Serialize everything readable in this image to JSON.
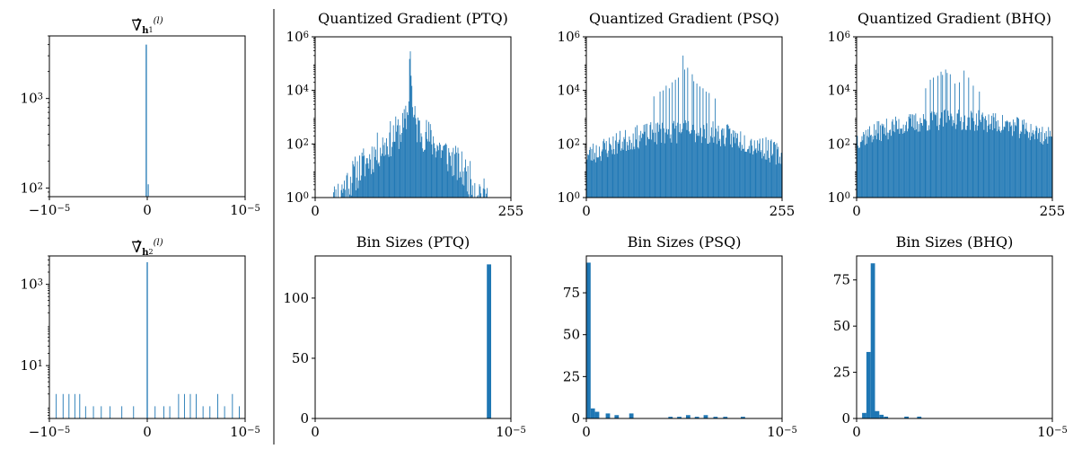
{
  "colors": {
    "bar": "#1f77b4",
    "axis": "#000000",
    "background": "#ffffff"
  },
  "chart_data": [
    {
      "id": "grad-h1",
      "type": "bar",
      "title": "∇̂ h1(l)",
      "title_parts": {
        "symbol": "∇̂",
        "sub": "h",
        "subsub": "1",
        "sup": "(l)"
      },
      "yscale": "log",
      "xlim": [
        -1e-05,
        1e-05
      ],
      "ylim": [
        80,
        5000
      ],
      "xticks": [
        {
          "v": -1e-05,
          "label": "−10−5",
          "base": "−10",
          "exp": "−5"
        },
        {
          "v": 0,
          "label": "0"
        },
        {
          "v": 1e-05,
          "label": "10−5",
          "base": "10",
          "exp": "−5"
        }
      ],
      "yticks": [
        {
          "v": 100,
          "label": "102",
          "base": "10",
          "exp": "2"
        },
        {
          "v": 1000,
          "label": "103",
          "base": "10",
          "exp": "3"
        }
      ],
      "bars": [
        {
          "x": -1e-07,
          "y": 4000,
          "w": 1.2e-07
        },
        {
          "x": 1e-07,
          "y": 110,
          "w": 1e-07
        }
      ]
    },
    {
      "id": "grad-h2",
      "type": "bar",
      "title": "∇̂ h2(l)",
      "title_parts": {
        "symbol": "∇̂",
        "sub": "h",
        "subsub": "2",
        "sup": "(l)"
      },
      "yscale": "log",
      "xlim": [
        -1e-05,
        1e-05
      ],
      "ylim": [
        0.5,
        5000
      ],
      "xticks": [
        {
          "v": -1e-05,
          "label": "−10−5",
          "base": "−10",
          "exp": "−5"
        },
        {
          "v": 0,
          "label": "0"
        },
        {
          "v": 1e-05,
          "label": "10−5",
          "base": "10",
          "exp": "−5"
        }
      ],
      "yticks": [
        {
          "v": 10,
          "label": "101",
          "base": "10",
          "exp": "1"
        },
        {
          "v": 1000,
          "label": "103",
          "base": "10",
          "exp": "3"
        }
      ],
      "bars": [
        {
          "x": 0,
          "y": 3500,
          "w": 1.2e-07
        },
        {
          "x": -9.3e-06,
          "y": 2,
          "w": 8e-08
        },
        {
          "x": -8.6e-06,
          "y": 2,
          "w": 8e-08
        },
        {
          "x": -8e-06,
          "y": 2,
          "w": 8e-08
        },
        {
          "x": -7.4e-06,
          "y": 2,
          "w": 8e-08
        },
        {
          "x": -6.9e-06,
          "y": 2,
          "w": 8e-08
        },
        {
          "x": -6.3e-06,
          "y": 1,
          "w": 8e-08
        },
        {
          "x": -5.5e-06,
          "y": 1,
          "w": 8e-08
        },
        {
          "x": -4.7e-06,
          "y": 1,
          "w": 8e-08
        },
        {
          "x": -3.8e-06,
          "y": 1,
          "w": 8e-08
        },
        {
          "x": -2.6e-06,
          "y": 1,
          "w": 8e-08
        },
        {
          "x": -1.4e-06,
          "y": 1,
          "w": 8e-08
        },
        {
          "x": 8e-07,
          "y": 1,
          "w": 8e-08
        },
        {
          "x": 1.7e-06,
          "y": 1,
          "w": 8e-08
        },
        {
          "x": 2.3e-06,
          "y": 1,
          "w": 8e-08
        },
        {
          "x": 3.2e-06,
          "y": 2,
          "w": 8e-08
        },
        {
          "x": 3.8e-06,
          "y": 2,
          "w": 8e-08
        },
        {
          "x": 4.4e-06,
          "y": 2,
          "w": 8e-08
        },
        {
          "x": 5e-06,
          "y": 2,
          "w": 8e-08
        },
        {
          "x": 5.7e-06,
          "y": 1,
          "w": 8e-08
        },
        {
          "x": 6.4e-06,
          "y": 1,
          "w": 8e-08
        },
        {
          "x": 7.2e-06,
          "y": 2,
          "w": 8e-08
        },
        {
          "x": 7.9e-06,
          "y": 1,
          "w": 8e-08
        },
        {
          "x": 8.7e-06,
          "y": 2,
          "w": 8e-08
        },
        {
          "x": 9.4e-06,
          "y": 1,
          "w": 8e-08
        }
      ]
    },
    {
      "id": "qgrad-ptq",
      "type": "bar",
      "title": "Quantized Gradient (PTQ)",
      "yscale": "log",
      "xlim": [
        0,
        255
      ],
      "ylim": [
        1,
        1000000
      ],
      "xticks": [
        {
          "v": 0,
          "label": "0"
        },
        {
          "v": 255,
          "label": "255"
        }
      ],
      "yticks": [
        {
          "v": 1,
          "label": "100",
          "base": "10",
          "exp": "0"
        },
        {
          "v": 100,
          "label": "102",
          "base": "10",
          "exp": "2"
        },
        {
          "v": 10000,
          "label": "104",
          "base": "10",
          "exp": "4"
        },
        {
          "v": 1000000,
          "label": "106",
          "base": "10",
          "exp": "6"
        }
      ],
      "hist": {
        "start": 20,
        "end": 226,
        "center": 124,
        "peak": 500000,
        "base": 700,
        "scale": 6,
        "floor": 1,
        "noise": 0.7,
        "seed": 11,
        "spikes": []
      }
    },
    {
      "id": "qgrad-psq",
      "type": "bar",
      "title": "Quantized Gradient (PSQ)",
      "yscale": "log",
      "xlim": [
        0,
        255
      ],
      "ylim": [
        1,
        1000000
      ],
      "xticks": [
        {
          "v": 0,
          "label": "0"
        },
        {
          "v": 255,
          "label": "255"
        }
      ],
      "yticks": [
        {
          "v": 1,
          "label": "100",
          "base": "10",
          "exp": "0"
        },
        {
          "v": 100,
          "label": "102",
          "base": "10",
          "exp": "2"
        },
        {
          "v": 10000,
          "label": "104",
          "base": "10",
          "exp": "4"
        },
        {
          "v": 1000000,
          "label": "106",
          "base": "10",
          "exp": "6"
        }
      ],
      "hist": {
        "start": 0,
        "end": 255,
        "center": 128,
        "peak": 300,
        "base": 0,
        "scale": 60,
        "floor": 3,
        "noise": 0.45,
        "seed": 23,
        "spikes": [
          [
            126,
            200000
          ],
          [
            128,
            60000
          ],
          [
            132,
            70000
          ],
          [
            138,
            40000
          ],
          [
            120,
            30000
          ],
          [
            112,
            20000
          ],
          [
            144,
            18000
          ],
          [
            104,
            15000
          ],
          [
            152,
            12000
          ],
          [
            96,
            9000
          ],
          [
            160,
            8000
          ],
          [
            88,
            6000
          ],
          [
            168,
            5000
          ],
          [
            116,
            25000
          ],
          [
            140,
            22000
          ],
          [
            100,
            10000
          ],
          [
            156,
            9000
          ],
          [
            108,
            12000
          ],
          [
            148,
            14000
          ],
          [
            0,
            500
          ]
        ]
      }
    },
    {
      "id": "qgrad-bhq",
      "type": "bar",
      "title": "Quantized Gradient (BHQ)",
      "yscale": "log",
      "xlim": [
        0,
        255
      ],
      "ylim": [
        1,
        1000000
      ],
      "xticks": [
        {
          "v": 0,
          "label": "0"
        },
        {
          "v": 255,
          "label": "255"
        }
      ],
      "yticks": [
        {
          "v": 1,
          "label": "100",
          "base": "10",
          "exp": "0"
        },
        {
          "v": 100,
          "label": "102",
          "base": "10",
          "exp": "2"
        },
        {
          "v": 10000,
          "label": "104",
          "base": "10",
          "exp": "4"
        },
        {
          "v": 1000000,
          "label": "106",
          "base": "10",
          "exp": "6"
        }
      ],
      "hist": {
        "start": 0,
        "end": 255,
        "center": 128,
        "peak": 800,
        "base": 0,
        "scale": 70,
        "floor": 3,
        "noise": 0.4,
        "seed": 37,
        "spikes": [
          [
            110,
            50000
          ],
          [
            116,
            60000
          ],
          [
            122,
            40000
          ],
          [
            100,
            30000
          ],
          [
            96,
            25000
          ],
          [
            106,
            35000
          ],
          [
            140,
            55000
          ],
          [
            146,
            30000
          ],
          [
            134,
            20000
          ],
          [
            152,
            15000
          ],
          [
            128,
            18000
          ],
          [
            90,
            12000
          ],
          [
            160,
            9000
          ],
          [
            118,
            45000
          ],
          [
            112,
            38000
          ]
        ]
      }
    },
    {
      "id": "bins-ptq",
      "type": "bar",
      "title": "Bin Sizes (PTQ)",
      "yscale": "linear",
      "xlim": [
        0,
        1e-05
      ],
      "ylim": [
        0,
        135
      ],
      "xticks": [
        {
          "v": 0,
          "label": "0"
        },
        {
          "v": 1e-05,
          "label": "10−5",
          "base": "10",
          "exp": "−5"
        }
      ],
      "yticks": [
        {
          "v": 0,
          "label": "0"
        },
        {
          "v": 50,
          "label": "50"
        },
        {
          "v": 100,
          "label": "100"
        }
      ],
      "bars": [
        {
          "x": 8.88e-06,
          "y": 128,
          "w": 2.2e-07
        }
      ]
    },
    {
      "id": "bins-psq",
      "type": "bar",
      "title": "Bin Sizes (PSQ)",
      "yscale": "linear",
      "xlim": [
        0,
        1e-05
      ],
      "ylim": [
        0,
        97
      ],
      "xticks": [
        {
          "v": 0,
          "label": "0"
        },
        {
          "v": 1e-05,
          "label": "10−5",
          "base": "10",
          "exp": "−5"
        }
      ],
      "yticks": [
        {
          "v": 0,
          "label": "0"
        },
        {
          "v": 25,
          "label": "25"
        },
        {
          "v": 50,
          "label": "50"
        },
        {
          "v": 75,
          "label": "75"
        }
      ],
      "bars": [
        {
          "x": 1.1e-07,
          "y": 93,
          "w": 2.2e-07
        },
        {
          "x": 3.3e-07,
          "y": 6,
          "w": 2.2e-07
        },
        {
          "x": 5.5e-07,
          "y": 4,
          "w": 2.2e-07
        },
        {
          "x": 1.1e-06,
          "y": 3,
          "w": 2.2e-07
        },
        {
          "x": 1.55e-06,
          "y": 2,
          "w": 2.2e-07
        },
        {
          "x": 2.3e-06,
          "y": 3,
          "w": 2.2e-07
        },
        {
          "x": 4.3e-06,
          "y": 1,
          "w": 2.2e-07
        },
        {
          "x": 4.75e-06,
          "y": 1,
          "w": 2.2e-07
        },
        {
          "x": 5.2e-06,
          "y": 2,
          "w": 2.2e-07
        },
        {
          "x": 5.65e-06,
          "y": 1,
          "w": 2.2e-07
        },
        {
          "x": 6.1e-06,
          "y": 2,
          "w": 2.2e-07
        },
        {
          "x": 6.6e-06,
          "y": 1,
          "w": 2.2e-07
        },
        {
          "x": 7.1e-06,
          "y": 1,
          "w": 2.2e-07
        },
        {
          "x": 8e-06,
          "y": 1,
          "w": 2.2e-07
        }
      ]
    },
    {
      "id": "bins-bhq",
      "type": "bar",
      "title": "Bin Sizes (BHQ)",
      "yscale": "linear",
      "xlim": [
        0,
        1e-05
      ],
      "ylim": [
        0,
        88
      ],
      "xticks": [
        {
          "v": 0,
          "label": "0"
        },
        {
          "v": 1e-05,
          "label": "10−5",
          "base": "10",
          "exp": "−5"
        }
      ],
      "yticks": [
        {
          "v": 0,
          "label": "0"
        },
        {
          "v": 25,
          "label": "25"
        },
        {
          "v": 50,
          "label": "50"
        },
        {
          "v": 75,
          "label": "75"
        }
      ],
      "bars": [
        {
          "x": 3.9e-07,
          "y": 3,
          "w": 2.2e-07
        },
        {
          "x": 6.1e-07,
          "y": 36,
          "w": 2.2e-07
        },
        {
          "x": 8.3e-07,
          "y": 84,
          "w": 2.2e-07
        },
        {
          "x": 1.05e-06,
          "y": 4,
          "w": 2.2e-07
        },
        {
          "x": 1.27e-06,
          "y": 2,
          "w": 2.2e-07
        },
        {
          "x": 1.5e-06,
          "y": 1,
          "w": 2.2e-07
        },
        {
          "x": 2.55e-06,
          "y": 1,
          "w": 2.2e-07
        },
        {
          "x": 3.2e-06,
          "y": 1,
          "w": 2.2e-07
        }
      ]
    }
  ]
}
